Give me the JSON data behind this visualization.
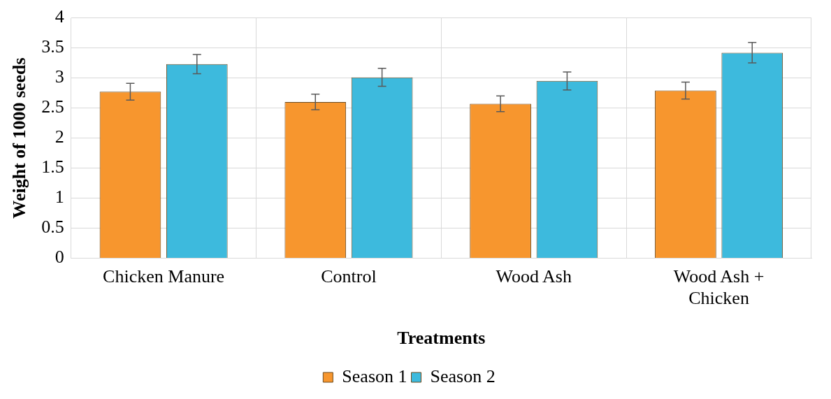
{
  "chart_data": {
    "type": "bar",
    "xlabel": "Treatments",
    "ylabel": "Weight of 1000 seeds",
    "categories": [
      "Chicken Manure",
      "Control",
      "Wood Ash",
      "Wood Ash + Chicken"
    ],
    "series": [
      {
        "name": "Season 1",
        "color": "#f7962e",
        "values": [
          2.77,
          2.6,
          2.57,
          2.79
        ],
        "errors": [
          0.14,
          0.13,
          0.13,
          0.14
        ]
      },
      {
        "name": "Season 2",
        "color": "#3dbadd",
        "values": [
          3.23,
          3.01,
          2.95,
          3.42
        ],
        "errors": [
          0.16,
          0.15,
          0.15,
          0.17
        ]
      }
    ],
    "ylim": [
      0,
      4
    ],
    "yticks": [
      0,
      0.5,
      1,
      1.5,
      2,
      2.5,
      3,
      3.5,
      4
    ],
    "grid": true,
    "legend": "bottom"
  }
}
